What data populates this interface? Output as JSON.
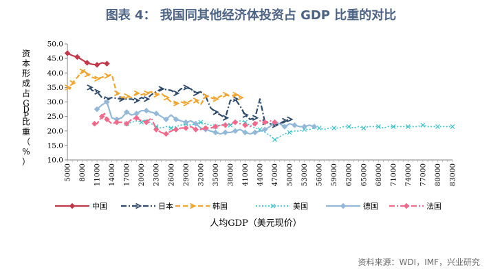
{
  "page": {
    "title": "图表 4： 我国同其他经济体投资占 GDP 比重的对比",
    "source": "资料来源：WDI，IMF，兴业研究"
  },
  "chart_data": {
    "type": "line",
    "title": "图表 4： 我国同其他经济体投资占 GDP 比重的对比",
    "xlabel": "人均GDP（美元现价）",
    "ylabel": "资本形成占GDP比重（%）",
    "xlim": [
      5000,
      83000
    ],
    "ylim": [
      10.0,
      50.0
    ],
    "xticks": [
      5000,
      8000,
      11000,
      14000,
      17000,
      20000,
      23000,
      26000,
      29000,
      32000,
      35000,
      38000,
      41000,
      44000,
      47000,
      50000,
      53000,
      56000,
      59000,
      62000,
      65000,
      68000,
      71000,
      74000,
      77000,
      80000,
      83000
    ],
    "yticks": [
      "10.0",
      "15.0",
      "20.0",
      "25.0",
      "30.0",
      "35.0",
      "40.0",
      "45.0",
      "50.0"
    ],
    "legend_position": "bottom",
    "series": [
      {
        "name": "中国",
        "color": "#c0394b",
        "dash": "solid",
        "marker": "diamond",
        "points": [
          [
            5000,
            46.8
          ],
          [
            6000,
            46.0
          ],
          [
            7000,
            45.5
          ],
          [
            8000,
            44.5
          ],
          [
            9000,
            43.5
          ],
          [
            10000,
            43.0
          ],
          [
            11000,
            42.8
          ],
          [
            12000,
            43.5
          ],
          [
            13000,
            43.2
          ]
        ]
      },
      {
        "name": "日本",
        "color": "#2e4a6b",
        "dash": "dashdot",
        "marker": "triangle",
        "points": [
          [
            9500,
            35.0
          ],
          [
            10000,
            34.0
          ],
          [
            11000,
            33.5
          ],
          [
            12000,
            31.5
          ],
          [
            13000,
            31.0
          ],
          [
            14000,
            31.5
          ],
          [
            16000,
            31.0
          ],
          [
            18000,
            31.0
          ],
          [
            19000,
            30.5
          ],
          [
            20000,
            31.5
          ],
          [
            21000,
            31.0
          ],
          [
            22000,
            32.5
          ],
          [
            24000,
            34.5
          ],
          [
            26000,
            34.0
          ],
          [
            27000,
            33.0
          ],
          [
            28000,
            34.5
          ],
          [
            29000,
            35.0
          ],
          [
            30000,
            34.5
          ],
          [
            31000,
            33.0
          ],
          [
            32000,
            33.5
          ],
          [
            33000,
            32.0
          ],
          [
            34000,
            28.0
          ],
          [
            35000,
            26.5
          ],
          [
            36000,
            25.5
          ],
          [
            37000,
            24.5
          ],
          [
            38000,
            30.5
          ],
          [
            39000,
            31.0
          ],
          [
            40000,
            28.5
          ],
          [
            41000,
            25.5
          ],
          [
            42000,
            24.0
          ],
          [
            43000,
            24.5
          ],
          [
            44000,
            31.0
          ],
          [
            45000,
            23.0
          ],
          [
            46000,
            22.5
          ],
          [
            47000,
            22.0
          ],
          [
            48000,
            22.5
          ],
          [
            49000,
            23.5
          ],
          [
            50000,
            24.0
          ]
        ]
      },
      {
        "name": "韩国",
        "color": "#f0a530",
        "dash": "dash",
        "marker": "triangle",
        "points": [
          [
            5000,
            35.0
          ],
          [
            5500,
            34.5
          ],
          [
            6000,
            36.5
          ],
          [
            7000,
            38.5
          ],
          [
            8000,
            40.5
          ],
          [
            8500,
            41.0
          ],
          [
            9000,
            39.5
          ],
          [
            10000,
            38.5
          ],
          [
            11000,
            38.0
          ],
          [
            12000,
            38.5
          ],
          [
            13000,
            39.0
          ],
          [
            14000,
            39.5
          ],
          [
            15000,
            33.0
          ],
          [
            16000,
            31.5
          ],
          [
            17000,
            32.0
          ],
          [
            18000,
            31.5
          ],
          [
            19000,
            33.0
          ],
          [
            20000,
            32.5
          ],
          [
            21000,
            33.0
          ],
          [
            22000,
            33.5
          ],
          [
            23000,
            32.5
          ],
          [
            24000,
            33.0
          ],
          [
            25000,
            31.5
          ],
          [
            26000,
            30.0
          ],
          [
            27000,
            29.5
          ],
          [
            28000,
            30.0
          ],
          [
            29000,
            29.5
          ],
          [
            30000,
            30.5
          ],
          [
            31000,
            30.5
          ],
          [
            32000,
            29.0
          ],
          [
            33000,
            32.0
          ],
          [
            34000,
            31.5
          ],
          [
            35000,
            31.0
          ],
          [
            36000,
            32.0
          ],
          [
            37000,
            32.5
          ],
          [
            38000,
            32.0
          ],
          [
            39000,
            32.5
          ],
          [
            40000,
            31.5
          ]
        ]
      },
      {
        "name": "美国",
        "color": "#38c2c8",
        "dash": "dot",
        "marker": "x",
        "points": [
          [
            17000,
            22.5
          ],
          [
            18000,
            23.0
          ],
          [
            19000,
            23.5
          ],
          [
            20000,
            23.0
          ],
          [
            21000,
            24.0
          ],
          [
            22000,
            22.5
          ],
          [
            23000,
            21.5
          ],
          [
            24000,
            21.0
          ],
          [
            25000,
            21.5
          ],
          [
            26000,
            21.0
          ],
          [
            27000,
            21.5
          ],
          [
            28000,
            22.0
          ],
          [
            29000,
            22.5
          ],
          [
            30000,
            22.0
          ],
          [
            31000,
            22.5
          ],
          [
            32000,
            23.0
          ],
          [
            33000,
            22.5
          ],
          [
            34000,
            22.0
          ],
          [
            35000,
            21.5
          ],
          [
            36000,
            22.0
          ],
          [
            37000,
            22.5
          ],
          [
            38000,
            22.0
          ],
          [
            39000,
            23.0
          ],
          [
            40000,
            23.5
          ],
          [
            41000,
            23.0
          ],
          [
            42000,
            22.0
          ],
          [
            43000,
            21.0
          ],
          [
            44000,
            20.5
          ],
          [
            45000,
            19.5
          ],
          [
            46000,
            18.5
          ],
          [
            47000,
            17.0
          ],
          [
            48000,
            18.0
          ],
          [
            49000,
            19.0
          ],
          [
            50000,
            19.5
          ],
          [
            51000,
            20.0
          ],
          [
            52000,
            20.0
          ],
          [
            53000,
            20.5
          ],
          [
            54000,
            20.5
          ],
          [
            55000,
            21.0
          ],
          [
            56000,
            21.0
          ],
          [
            57000,
            20.5
          ],
          [
            58000,
            21.0
          ],
          [
            59000,
            21.0
          ],
          [
            60000,
            21.0
          ],
          [
            61000,
            21.5
          ],
          [
            62000,
            21.5
          ],
          [
            63000,
            21.0
          ],
          [
            64000,
            21.5
          ],
          [
            65000,
            21.0
          ],
          [
            66000,
            21.5
          ],
          [
            67000,
            21.5
          ],
          [
            68000,
            21.5
          ],
          [
            69000,
            21.0
          ],
          [
            70000,
            21.5
          ],
          [
            71000,
            21.5
          ],
          [
            72000,
            21.5
          ],
          [
            73000,
            21.5
          ],
          [
            74000,
            21.5
          ],
          [
            75000,
            21.5
          ],
          [
            76000,
            21.5
          ],
          [
            77000,
            22.0
          ],
          [
            78000,
            21.5
          ],
          [
            79000,
            21.5
          ],
          [
            80000,
            21.5
          ],
          [
            81000,
            21.5
          ],
          [
            82000,
            21.5
          ],
          [
            83000,
            21.5
          ]
        ]
      },
      {
        "name": "德国",
        "color": "#93b8d8",
        "dash": "solid",
        "marker": "diamond",
        "points": [
          [
            11000,
            27.5
          ],
          [
            12000,
            29.0
          ],
          [
            13000,
            30.0
          ],
          [
            14000,
            24.5
          ],
          [
            15000,
            24.0
          ],
          [
            16000,
            24.5
          ],
          [
            17000,
            26.5
          ],
          [
            18000,
            25.5
          ],
          [
            19000,
            26.0
          ],
          [
            20000,
            27.0
          ],
          [
            21000,
            27.0
          ],
          [
            22000,
            26.5
          ],
          [
            23000,
            26.0
          ],
          [
            24000,
            25.0
          ],
          [
            25000,
            24.0
          ],
          [
            26000,
            25.5
          ],
          [
            27000,
            24.0
          ],
          [
            28000,
            23.5
          ],
          [
            29000,
            23.0
          ],
          [
            30000,
            23.5
          ],
          [
            31000,
            22.5
          ],
          [
            32000,
            21.0
          ],
          [
            33000,
            20.5
          ],
          [
            34000,
            20.0
          ],
          [
            35000,
            19.5
          ],
          [
            36000,
            19.0
          ],
          [
            37000,
            19.5
          ],
          [
            38000,
            19.5
          ],
          [
            39000,
            20.0
          ],
          [
            40000,
            20.5
          ],
          [
            41000,
            19.5
          ],
          [
            42000,
            19.0
          ],
          [
            43000,
            19.5
          ],
          [
            44000,
            20.0
          ],
          [
            45000,
            20.5
          ],
          [
            46000,
            21.5
          ],
          [
            47000,
            23.0
          ],
          [
            48000,
            22.5
          ],
          [
            49000,
            21.5
          ],
          [
            50000,
            22.5
          ],
          [
            51000,
            22.0
          ],
          [
            52000,
            21.5
          ],
          [
            53000,
            21.5
          ],
          [
            54000,
            22.0
          ],
          [
            55000,
            21.5
          ]
        ]
      },
      {
        "name": "法国",
        "color": "#f06a8c",
        "dash": "dashdot",
        "marker": "diamond",
        "points": [
          [
            10500,
            22.5
          ],
          [
            11000,
            22.5
          ],
          [
            12000,
            25.0
          ],
          [
            12500,
            26.0
          ],
          [
            13000,
            24.0
          ],
          [
            14000,
            22.5
          ],
          [
            15000,
            23.0
          ],
          [
            16000,
            23.0
          ],
          [
            17000,
            22.5
          ],
          [
            18000,
            24.0
          ],
          [
            19000,
            24.5
          ],
          [
            20000,
            23.5
          ],
          [
            21000,
            23.0
          ],
          [
            22000,
            24.5
          ],
          [
            23000,
            20.5
          ],
          [
            24000,
            19.5
          ],
          [
            25000,
            19.0
          ],
          [
            26000,
            20.0
          ],
          [
            27000,
            20.5
          ],
          [
            28000,
            21.0
          ],
          [
            29000,
            21.0
          ],
          [
            30000,
            21.5
          ],
          [
            31000,
            20.5
          ],
          [
            32000,
            20.5
          ],
          [
            33000,
            21.0
          ],
          [
            34000,
            21.0
          ],
          [
            35000,
            21.5
          ],
          [
            36000,
            22.0
          ],
          [
            37000,
            22.0
          ],
          [
            38000,
            22.5
          ],
          [
            39000,
            23.0
          ],
          [
            40000,
            22.5
          ],
          [
            41000,
            22.0
          ],
          [
            42000,
            21.5
          ],
          [
            43000,
            22.5
          ],
          [
            44000,
            23.5
          ],
          [
            45000,
            23.0
          ],
          [
            46000,
            23.5
          ],
          [
            47000,
            23.0
          ]
        ]
      }
    ]
  }
}
